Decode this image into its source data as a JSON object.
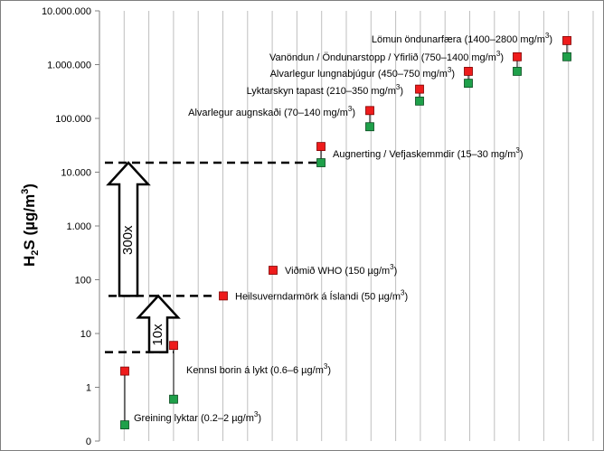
{
  "chart_data": {
    "type": "scatter",
    "scale": "log",
    "ylim": [
      0,
      10000000
    ],
    "ylabel": {
      "main": "H",
      "sub": "2",
      "rest": "S (µg/m",
      "sup": "3",
      "end": ")"
    },
    "yticks": [
      {
        "value": 0,
        "label": "0"
      },
      {
        "value": 1,
        "label": "1"
      },
      {
        "value": 10,
        "label": "10"
      },
      {
        "value": 100,
        "label": "100"
      },
      {
        "value": 1000,
        "label": "1.000"
      },
      {
        "value": 10000,
        "label": "10.000"
      },
      {
        "value": 100000,
        "label": "100.000"
      },
      {
        "value": 1000000,
        "label": "1.000.000"
      },
      {
        "value": 10000000,
        "label": "10.000.000"
      }
    ],
    "colors": {
      "high": "#ee1c1c",
      "low": "#1fa04a",
      "grid": "#bfbfbf"
    },
    "pairs": [
      {
        "low": 0.2,
        "high": 2,
        "label_pre": "Greining lyktar (0.2–2 µg/m",
        "label_post": ")"
      },
      {
        "low": 0.6,
        "high": 6,
        "label_pre": "Kennsl borin  á lykt (0.6–6 µg/m",
        "label_post": ")"
      },
      {
        "low": 15000,
        "high": 30000,
        "label_pre": "Augnerting  / Vefjaskemmdir (15–30  mg/m",
        "label_post": ")"
      },
      {
        "low": 70000,
        "high": 140000,
        "label_pre": "Alvarlegur  augnskaði  (70–140 mg/m",
        "label_post": ")"
      },
      {
        "low": 210000,
        "high": 350000,
        "label_pre": "Lyktarskyn tapast  (210–350  mg/m",
        "label_post": ")"
      },
      {
        "low": 450000,
        "high": 750000,
        "label_pre": "Alvarlegur  lungnabjúgur  (450–750 mg/m",
        "label_post": ")"
      },
      {
        "low": 750000,
        "high": 1400000,
        "label_pre": "Vanöndun  / Öndunarstopp  / Yfirlið  (750–1400  mg/m",
        "label_post": ")"
      },
      {
        "low": 1400000,
        "high": 2800000,
        "label_pre": "Lömun öndunarfæra   (1400–2800  mg/m",
        "label_post": ")"
      }
    ],
    "singles": [
      {
        "value": 50,
        "label_pre": "Heilsuverndarmörk  á Íslandi (50 µg/m",
        "label_post": ")"
      },
      {
        "value": 150,
        "label_pre": "Viðmið WHO (150 µg/m",
        "label_post": ")"
      }
    ],
    "references": [
      4.5,
      50,
      15000
    ],
    "arrows": [
      {
        "from": 4.5,
        "to": 50,
        "label": "10x"
      },
      {
        "from": 50,
        "to": 15000,
        "label": "300x"
      }
    ]
  }
}
